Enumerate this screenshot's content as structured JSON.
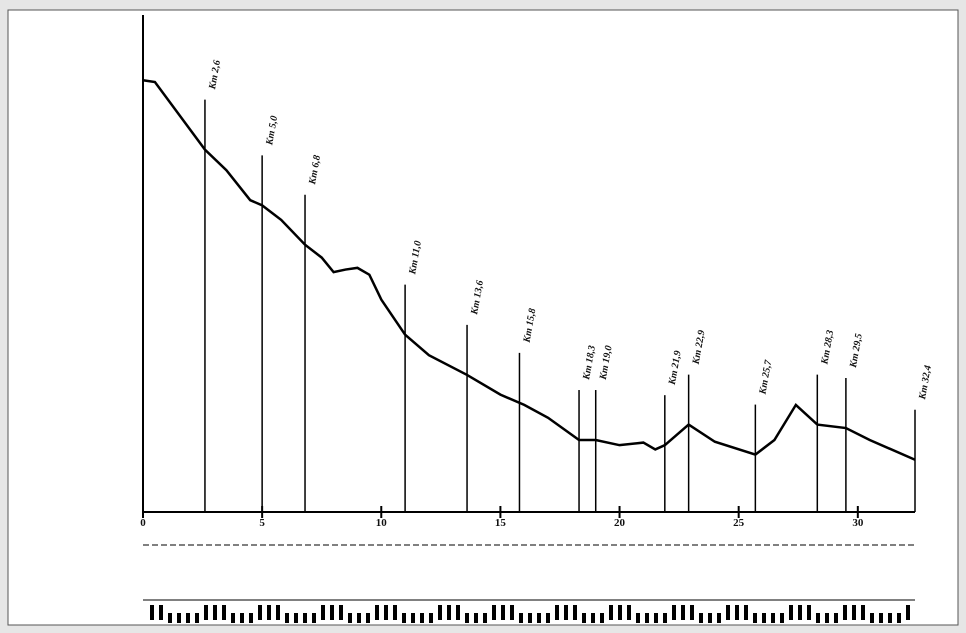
{
  "chart_data": {
    "type": "line",
    "x": [
      0,
      0.5,
      2.6,
      3.5,
      4.5,
      5.0,
      5.8,
      6.8,
      7.5,
      8,
      8.5,
      9,
      9.5,
      10,
      11,
      12,
      13.6,
      15,
      16,
      17,
      18.3,
      19,
      20,
      21,
      21.5,
      21.9,
      22.9,
      24,
      25.7,
      26.5,
      27.4,
      28.3,
      29.5,
      30.5,
      32.4
    ],
    "series": [
      {
        "color": "#000000",
        "values": [
          1155,
          1153,
          1074,
          1050,
          1015,
          1009,
          992,
          963,
          948,
          931,
          934,
          936,
          928,
          899,
          858,
          834,
          811,
          788,
          776,
          761,
          735,
          735,
          729,
          732,
          724,
          729,
          753,
          733,
          718,
          735,
          776,
          753,
          749,
          735,
          712
        ]
      }
    ],
    "xlim": [
      0,
      32.4
    ],
    "xticks": [
      0,
      5,
      10,
      15,
      20,
      25,
      30
    ],
    "ylim": [
      700,
      1160
    ],
    "stations": {
      "x": [
        2.6,
        5.0,
        6.8,
        11.0,
        13.6,
        15.8,
        18.3,
        19.0,
        21.9,
        22.9,
        25.7,
        28.3,
        29.5,
        32.4
      ],
      "labels": [
        "Km 2,6",
        "Km 5,0",
        "Km 6,8",
        "Km 11,0",
        "Km 13,6",
        "Km 15,8",
        "Km 18,3",
        "Km 19,0",
        "Km 21,9",
        "Km 22,9",
        "Km 25,7",
        "Km 28,3",
        "Km 29,5",
        "Km 32,4"
      ]
    }
  }
}
